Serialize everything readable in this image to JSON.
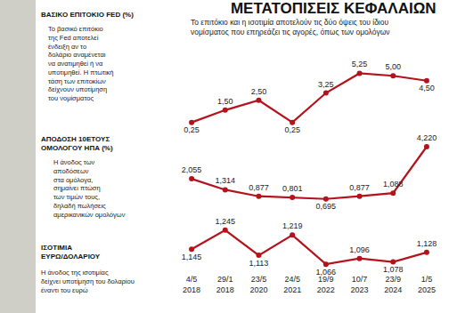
{
  "header": {
    "title": "ΜΕΤΑΤΟΠΙΣΕΙΣ ΚΕΦΑΛΑΙΩΝ",
    "subtitle": [
      "Το επιτόκιο και η ισοτιμία αποτελούν τις δύο όψεις του ίδιου",
      "νομίσματος που επηρεάζει τις αγορές, όπως των ομολόγων"
    ]
  },
  "chart_data": [
    {
      "type": "line",
      "title": [
        "ΒΑΣΙΚΟ ΕΠΙΤΟΚΙΟ FED (%)"
      ],
      "note": [
        "Το βασικό επιτόκιο",
        "της Fed αποτελεί",
        "ένδειξη αν το",
        "δολάριο αναμένεται",
        "να ανατιμηθεί ή να",
        "υποτιμηθεί. Η πτωτική",
        "τάση των επιτοκίων",
        "δείχνουν υποτίμηση",
        "του νομίσματος"
      ],
      "categories": [
        "4/5\n2018",
        "29/1\n2018",
        "23/5\n2020",
        "24/5\n2021",
        "19/9\n2022",
        "10/7\n2023",
        "23/9\n2024",
        "1/5\n2025"
      ],
      "values": [
        0.25,
        1.5,
        2.5,
        0.25,
        3.25,
        5.25,
        5.0,
        4.5
      ],
      "value_labels": [
        "0,25",
        "1,50",
        "2,50",
        "0,25",
        "3,25",
        "5,25",
        "5,00",
        "4,50"
      ],
      "ylim": [
        -0.6,
        6.2
      ],
      "grid": false,
      "tick_labels": false,
      "data_labels": true,
      "color": "#b5121b",
      "marker": "circle",
      "line_style": "solid"
    },
    {
      "type": "line",
      "title": [
        "ΑΠΟΔΟΣΗ 10ΕΤΟΥΣ",
        "ΟΜΟΛΟΓΟΥ ΗΠΑ (%)"
      ],
      "note": [
        "Η άνοδος των",
        "αποδόσεων",
        "στα ομόλογα,",
        "σημαίνει πτώση",
        "των τιμών τους,",
        "δηλαδή πωλήσεις",
        "αμερικανικών ομολόγων"
      ],
      "categories": [
        "4/5\n2018",
        "29/1\n2018",
        "23/5\n2020",
        "24/5\n2021",
        "19/9\n2022",
        "10/7\n2023",
        "23/9\n2024",
        "1/5\n2025"
      ],
      "values": [
        2.055,
        1.314,
        0.877,
        0.801,
        0.695,
        0.877,
        1.088,
        4.22
      ],
      "value_labels": [
        "2,055",
        "1,314",
        "0,877",
        "0,801",
        "0,695",
        "0,877",
        "1,088",
        "4,220"
      ],
      "ylim": [
        0.2,
        4.7
      ],
      "grid": false,
      "tick_labels": false,
      "data_labels": true,
      "color": "#b5121b",
      "marker": "circle",
      "line_style": "solid"
    },
    {
      "type": "line",
      "title": [
        "ΙΣΟΤΙΜΙΑ",
        "ΕΥΡΩ/ΔΟΛΑΡΙΟΥ"
      ],
      "note": [
        "Η άνοδος της ισοτιμίας",
        "δείχνει υποτίμηση του δολαρίου",
        "έναντι του ευρώ"
      ],
      "categories": [
        "4/5\n2018",
        "29/1\n2018",
        "23/5\n2020",
        "24/5\n2021",
        "19/9\n2022",
        "10/7\n2023",
        "23/9\n2024",
        "1/5\n2025"
      ],
      "values": [
        1.145,
        1.245,
        1.113,
        1.219,
        1.066,
        1.096,
        1.078,
        1.128
      ],
      "value_labels": [
        "1,145",
        "1,245",
        "1,113",
        "1,219",
        "1,066",
        "1,096",
        "1,078",
        "1,128"
      ],
      "ylim": [
        1.02,
        1.3
      ],
      "grid": false,
      "tick_labels": "x",
      "data_labels": true,
      "color": "#b5121b",
      "marker": "circle",
      "line_style": "solid"
    }
  ]
}
